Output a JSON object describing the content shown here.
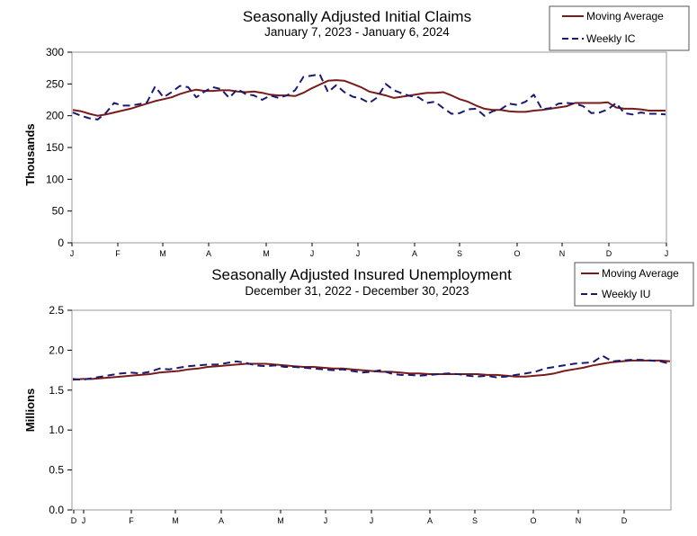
{
  "chart_data": [
    {
      "type": "line",
      "title": "Seasonally Adjusted Initial Claims",
      "subtitle": "January 7, 2023 - January 6, 2024",
      "ylabel": "Thousands",
      "ylim": [
        0,
        300
      ],
      "yticks": [
        0,
        50,
        100,
        150,
        200,
        250,
        300
      ],
      "x_tick_labels": [
        "J",
        "F",
        "M",
        "A",
        "M",
        "J",
        "J",
        "A",
        "S",
        "O",
        "N",
        "D",
        "J"
      ],
      "grid": false,
      "legend_position": "top-right",
      "series": [
        {
          "name": "Moving Average",
          "style": "solid",
          "color": "#7a1b1b",
          "values": [
            209,
            207,
            203,
            200,
            202,
            205,
            208,
            211,
            215,
            219,
            223,
            226,
            229,
            234,
            238,
            241,
            239,
            239,
            240,
            240,
            238,
            237,
            238,
            236,
            233,
            232,
            232,
            231,
            236,
            243,
            249,
            255,
            256,
            255,
            250,
            245,
            238,
            235,
            232,
            228,
            230,
            232,
            234,
            236,
            236,
            237,
            232,
            226,
            222,
            216,
            211,
            209,
            209,
            207,
            206,
            206,
            208,
            209,
            211,
            213,
            215,
            220,
            220,
            220,
            220,
            221,
            213,
            211,
            211,
            210,
            208,
            208,
            208
          ]
        },
        {
          "name": "Weekly IC",
          "style": "dashed",
          "color": "#1a1a6e",
          "values": [
            205,
            200,
            196,
            194,
            204,
            220,
            216,
            216,
            218,
            221,
            246,
            229,
            237,
            247,
            245,
            229,
            238,
            245,
            242,
            228,
            242,
            234,
            232,
            225,
            232,
            228,
            232,
            240,
            261,
            263,
            265,
            237,
            248,
            237,
            230,
            227,
            220,
            229,
            250,
            240,
            235,
            231,
            229,
            220,
            222,
            212,
            203,
            204,
            210,
            211,
            200,
            207,
            210,
            219,
            217,
            222,
            233,
            210,
            212,
            219,
            220,
            219,
            215,
            204,
            205,
            210,
            220,
            204,
            202,
            205,
            203,
            203,
            202
          ]
        }
      ]
    },
    {
      "type": "line",
      "title": "Seasonally Adjusted Insured Unemployment",
      "subtitle": "December 31, 2022 - December 30, 2023",
      "ylabel": "Millions",
      "ylim": [
        0,
        2.5
      ],
      "yticks": [
        "0.0",
        "0.5",
        "1.0",
        "1.5",
        "2.0",
        "2.5"
      ],
      "x_tick_labels": [
        "D",
        "J",
        "F",
        "M",
        "A",
        "M",
        "J",
        "J",
        "A",
        "S",
        "O",
        "N",
        "D"
      ],
      "grid": false,
      "legend_position": "top-right",
      "series": [
        {
          "name": "Moving Average",
          "style": "solid",
          "color": "#7a1b1b",
          "values": [
            1.63,
            1.64,
            1.64,
            1.65,
            1.66,
            1.67,
            1.68,
            1.69,
            1.7,
            1.72,
            1.73,
            1.74,
            1.76,
            1.77,
            1.79,
            1.8,
            1.81,
            1.82,
            1.83,
            1.83,
            1.83,
            1.82,
            1.81,
            1.8,
            1.79,
            1.79,
            1.78,
            1.77,
            1.77,
            1.76,
            1.75,
            1.74,
            1.73,
            1.73,
            1.72,
            1.71,
            1.71,
            1.7,
            1.7,
            1.7,
            1.7,
            1.7,
            1.7,
            1.69,
            1.69,
            1.68,
            1.67,
            1.67,
            1.68,
            1.69,
            1.71,
            1.74,
            1.76,
            1.78,
            1.81,
            1.83,
            1.85,
            1.86,
            1.87,
            1.87,
            1.87,
            1.87,
            1.86
          ]
        },
        {
          "name": "Weekly IU",
          "style": "dashed",
          "color": "#1a1a6e",
          "values": [
            1.64,
            1.63,
            1.65,
            1.67,
            1.69,
            1.71,
            1.72,
            1.71,
            1.73,
            1.77,
            1.76,
            1.78,
            1.8,
            1.81,
            1.82,
            1.82,
            1.84,
            1.86,
            1.84,
            1.81,
            1.8,
            1.81,
            1.79,
            1.79,
            1.78,
            1.77,
            1.76,
            1.75,
            1.76,
            1.74,
            1.72,
            1.73,
            1.75,
            1.71,
            1.69,
            1.69,
            1.68,
            1.69,
            1.7,
            1.71,
            1.7,
            1.68,
            1.67,
            1.68,
            1.66,
            1.67,
            1.69,
            1.71,
            1.73,
            1.77,
            1.79,
            1.81,
            1.83,
            1.84,
            1.85,
            1.93,
            1.86,
            1.87,
            1.88,
            1.88,
            1.87,
            1.86,
            1.83
          ]
        }
      ]
    }
  ]
}
